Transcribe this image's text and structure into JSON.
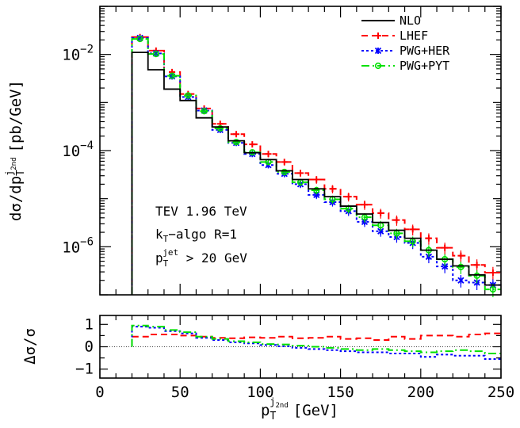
{
  "chart_data": [
    {
      "type": "line",
      "step": true,
      "x_scale": "linear",
      "y_scale": "log",
      "xlim": [
        0,
        250
      ],
      "ylim": [
        1e-07,
        0.1
      ],
      "ylabel_main": "dσ/dp",
      "ylabel_sup": "j",
      "ylabel_sup2": "2nd",
      "ylabel_sub": "T",
      "ylabel_unit": "[pb/GeV]",
      "x_ticks": [
        0,
        50,
        100,
        150,
        200,
        250
      ],
      "y_ticks": [
        {
          "value": 0.01,
          "base": "10",
          "exp": "−2"
        },
        {
          "value": 0.0001,
          "base": "10",
          "exp": "−4"
        },
        {
          "value": 1e-06,
          "base": "10",
          "exp": "−6"
        }
      ],
      "legend_position": "top-right",
      "bin_edges": [
        20,
        30,
        40,
        50,
        60,
        70,
        80,
        90,
        100,
        110,
        120,
        130,
        140,
        150,
        160,
        170,
        180,
        190,
        200,
        210,
        220,
        230,
        240,
        250
      ],
      "series": [
        {
          "name": "NLO",
          "color": "#000000",
          "dash": "",
          "marker": "none",
          "values": [
            0.011,
            0.0048,
            0.0019,
            0.0011,
            0.00048,
            0.00031,
            0.00016,
            9e-05,
            6.5e-05,
            3.8e-05,
            2.5e-05,
            1.6e-05,
            1.1e-05,
            7e-06,
            4.8e-06,
            3.2e-06,
            2.2e-06,
            1.5e-06,
            8.5e-07,
            5.5e-07,
            4e-07,
            2.6e-07,
            1.6e-07
          ]
        },
        {
          "name": "LHEF",
          "color": "#ff0000",
          "dash": "8,5",
          "marker": "plus",
          "values": [
            0.023,
            0.012,
            0.0043,
            0.0015,
            0.00075,
            0.00036,
            0.00022,
            0.000135,
            8.5e-05,
            5.8e-05,
            3.4e-05,
            2.5e-05,
            1.6e-05,
            1.1e-05,
            7.5e-06,
            5e-06,
            3.6e-06,
            2.3e-06,
            1.5e-06,
            9.5e-07,
            6.5e-07,
            4.2e-07,
            2.9e-07
          ]
        },
        {
          "name": "PWG+HER",
          "color": "#0000ff",
          "dash": "3,3",
          "marker": "cross",
          "values": [
            0.022,
            0.0105,
            0.0035,
            0.0013,
            0.00068,
            0.00027,
            0.000145,
            8.5e-05,
            5e-05,
            3.3e-05,
            2e-05,
            1.2e-05,
            8.5e-06,
            5.5e-06,
            3.3e-06,
            2.1e-06,
            1.6e-06,
            1.2e-06,
            6.2e-07,
            3.9e-07,
            2e-07,
            1.8e-07,
            1.6e-07
          ]
        },
        {
          "name": "PWG+PYT",
          "color": "#00e000",
          "dash": "10,4,2,4",
          "marker": "circle",
          "values": [
            0.021,
            0.0102,
            0.0036,
            0.0014,
            0.00066,
            0.00029,
            0.00015,
            9.2e-05,
            5.8e-05,
            3.6e-05,
            2.2e-05,
            1.5e-05,
            9.7e-06,
            6.2e-06,
            4.1e-06,
            2.8e-06,
            1.9e-06,
            1.3e-06,
            8.5e-07,
            5.5e-07,
            3.8e-07,
            2.5e-07,
            1.3e-07
          ]
        }
      ]
    },
    {
      "type": "line",
      "step": true,
      "x_scale": "linear",
      "xlim": [
        0,
        250
      ],
      "ylim": [
        -1.4,
        1.4
      ],
      "ylabel": "Δσ/σ",
      "xlabel_main": "p",
      "xlabel_sup": "j",
      "xlabel_sup2": "2nd",
      "xlabel_sub": "T",
      "xlabel_unit": "[GeV]",
      "x_ticks": [
        0,
        50,
        100,
        150,
        200,
        250
      ],
      "y_ticks": [
        1,
        0,
        -1
      ],
      "reference_line": 0,
      "bin_edges": [
        20,
        30,
        40,
        50,
        60,
        70,
        80,
        90,
        100,
        110,
        120,
        130,
        140,
        150,
        160,
        170,
        180,
        190,
        200,
        210,
        220,
        230,
        240,
        250
      ],
      "series": [
        {
          "name": "LHEF",
          "color": "#ff0000",
          "dash": "8,5",
          "values": [
            0.45,
            0.55,
            0.55,
            0.5,
            0.45,
            0.4,
            0.38,
            0.42,
            0.4,
            0.45,
            0.38,
            0.4,
            0.45,
            0.35,
            0.38,
            0.3,
            0.45,
            0.35,
            0.5,
            0.5,
            0.45,
            0.55,
            0.6
          ]
        },
        {
          "name": "PWG+HER",
          "color": "#0000ff",
          "dash": "3,3",
          "values": [
            0.9,
            0.85,
            0.7,
            0.6,
            0.4,
            0.3,
            0.2,
            0.15,
            0.08,
            0.02,
            -0.05,
            -0.1,
            -0.15,
            -0.2,
            -0.25,
            -0.25,
            -0.3,
            -0.3,
            -0.45,
            -0.35,
            -0.4,
            -0.4,
            -0.55
          ]
        },
        {
          "name": "PWG+PYT",
          "color": "#00e000",
          "dash": "10,4,2,4",
          "values": [
            0.95,
            0.9,
            0.75,
            0.65,
            0.45,
            0.35,
            0.25,
            0.2,
            0.12,
            0.1,
            0.05,
            0.0,
            -0.05,
            -0.1,
            -0.15,
            -0.1,
            -0.15,
            -0.2,
            -0.25,
            -0.2,
            -0.15,
            -0.2,
            -0.3
          ]
        }
      ]
    }
  ],
  "annotations": {
    "collider_line1": "TEV 1.96 TeV",
    "algo_main": "k",
    "algo_sub": "T",
    "algo_rest": "−algo R=1",
    "cut_main": "p",
    "cut_sub": "T",
    "cut_sup": "jet",
    "cut_rest": " > 20 GeV"
  }
}
